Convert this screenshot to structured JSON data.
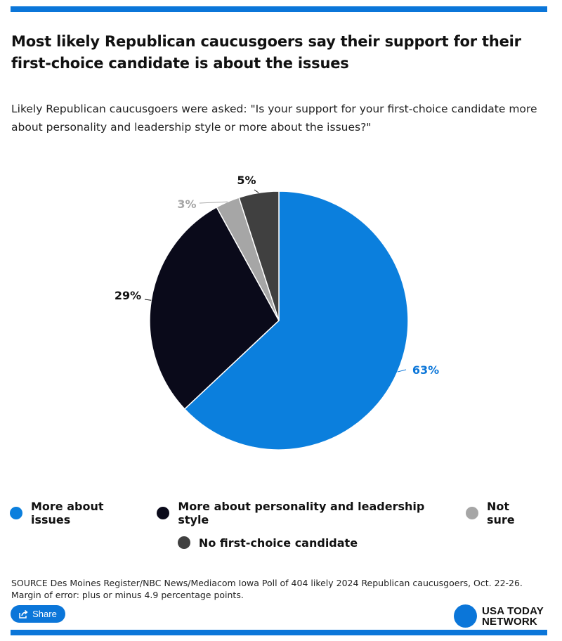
{
  "title": "Most likely Republican caucusgoers say their support for their first-choice candidate is about the issues",
  "subtitle": "Likely Republican caucusgoers were asked: \"Is your support for your first-choice candidate more about personality and leadership style or more about the issues?\"",
  "chart_data": {
    "type": "pie",
    "slices": [
      {
        "name": "More about issues",
        "value": 63,
        "label": "63%",
        "color": "#0b7fdd",
        "label_color": "#0b76d9"
      },
      {
        "name": "More about personality and leadership style",
        "value": 29,
        "label": "29%",
        "color": "#0a0a1a",
        "label_color": "#111111"
      },
      {
        "name": "Not sure",
        "value": 3,
        "label": "3%",
        "color": "#a6a6a6",
        "label_color": "#a6a6a6"
      },
      {
        "name": "No first-choice candidate",
        "value": 5,
        "label": "5%",
        "color": "#404040",
        "label_color": "#111111"
      }
    ],
    "legend_position": "bottom"
  },
  "legend": [
    {
      "label": "More about issues",
      "color": "#0b7fdd"
    },
    {
      "label": "More about personality and leadership style",
      "color": "#0a0a1a"
    },
    {
      "label": "Not sure",
      "color": "#a6a6a6"
    },
    {
      "label": "No first-choice candidate",
      "color": "#404040"
    }
  ],
  "source": "SOURCE Des Moines Register/NBC News/Mediacom Iowa Poll of 404 likely 2024 Republican caucusgoers, Oct. 22-26. Margin of error: plus or minus 4.9 percentage points.",
  "share_label": "Share",
  "logo": {
    "line1": "USA TODAY",
    "line2": "NETWORK",
    "color": "#0b76d9"
  }
}
